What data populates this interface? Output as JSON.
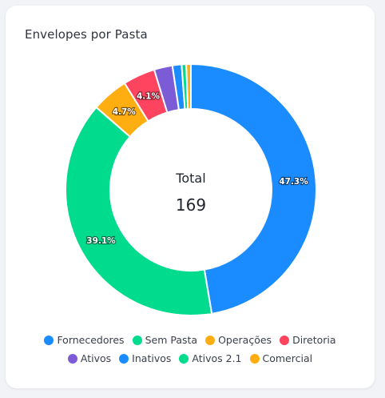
{
  "card": {
    "title": "Envelopes por Pasta"
  },
  "center": {
    "label": "Total",
    "value": "169"
  },
  "chart_data": {
    "type": "pie",
    "title": "Envelopes por Pasta",
    "total": 169,
    "categories": [
      "Fornecedores",
      "Sem Pasta",
      "Operações",
      "Diretoria",
      "Ativos",
      "Inativos",
      "Ativos 2.1",
      "Comercial"
    ],
    "values": [
      80,
      66,
      8,
      7,
      4,
      2,
      1,
      1
    ],
    "percent_labels": [
      "47.3%",
      "39.1%",
      "4.7%",
      "4.1%",
      "",
      "",
      "",
      ""
    ],
    "colors": [
      "#1a8cff",
      "#00db8e",
      "#ffae12",
      "#ff4460",
      "#7b5cd6",
      "#1a8cff",
      "#00db8e",
      "#ffae12"
    ],
    "legend_position": "bottom"
  },
  "legend": {
    "rows": [
      [
        {
          "label": "Fornecedores",
          "color": "#1a8cff"
        },
        {
          "label": "Sem Pasta",
          "color": "#00db8e"
        },
        {
          "label": "Operações",
          "color": "#ffae12"
        },
        {
          "label": "Diretoria",
          "color": "#ff4460"
        }
      ],
      [
        {
          "label": "Ativos",
          "color": "#7b5cd6"
        },
        {
          "label": "Inativos",
          "color": "#1a8cff"
        },
        {
          "label": "Ativos 2.1",
          "color": "#00db8e"
        },
        {
          "label": "Comercial",
          "color": "#ffae12"
        }
      ]
    ]
  }
}
